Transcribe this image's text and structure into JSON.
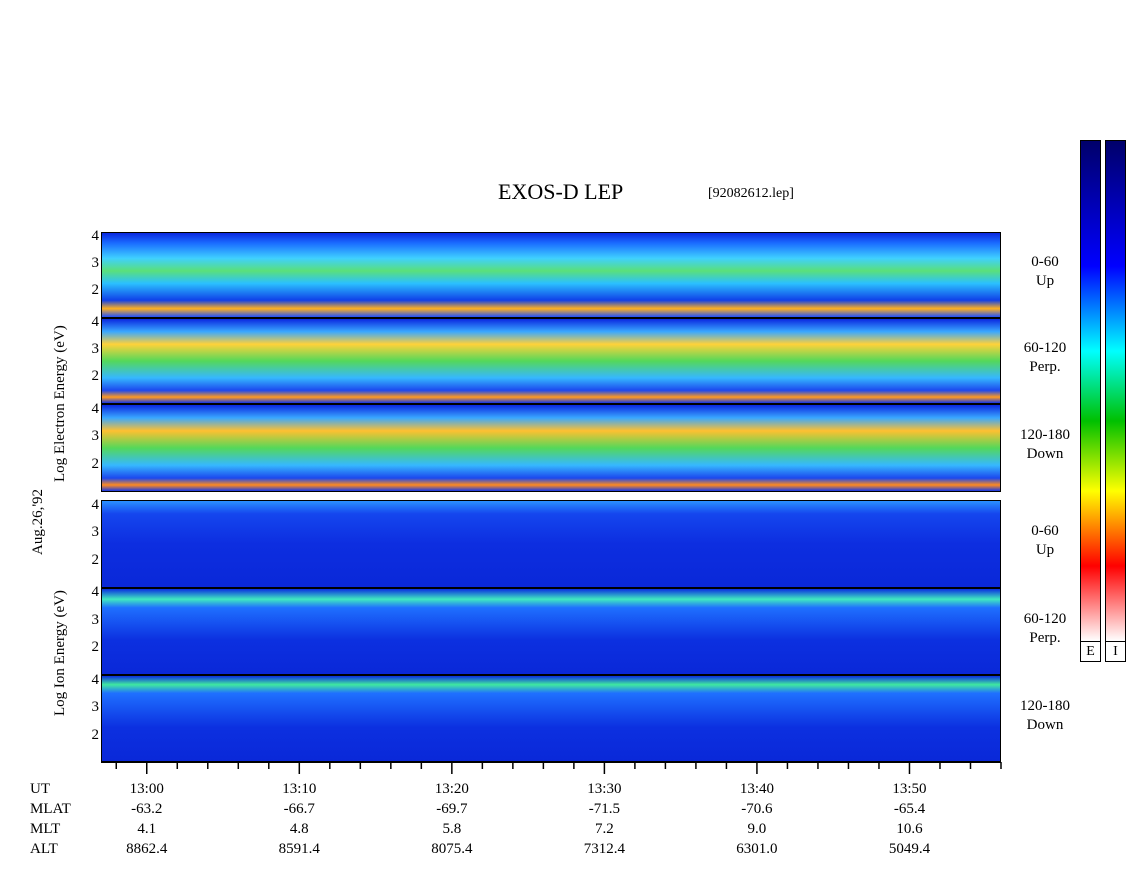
{
  "title": "EXOS-D LEP",
  "filename": "[92082612.lep]",
  "date_label": "Aug.26,'92",
  "electron_axis_label": "Log Electron Energy (eV)",
  "ion_axis_label": "Log Ion Energy (eV)",
  "colorbar": {
    "labels": [
      "E",
      "I"
    ]
  },
  "chart_data": {
    "type": "heatmap",
    "title": "EXOS-D LEP",
    "panels": [
      {
        "species": "Electron",
        "pitch_angle": "0-60",
        "direction": "Up",
        "y_ticks": [
          2,
          3,
          4
        ]
      },
      {
        "species": "Electron",
        "pitch_angle": "60-120",
        "direction": "Perp.",
        "y_ticks": [
          2,
          3,
          4
        ]
      },
      {
        "species": "Electron",
        "pitch_angle": "120-180",
        "direction": "Down",
        "y_ticks": [
          2,
          3,
          4
        ]
      },
      {
        "species": "Ion",
        "pitch_angle": "0-60",
        "direction": "Up",
        "y_ticks": [
          2,
          3,
          4
        ]
      },
      {
        "species": "Ion",
        "pitch_angle": "60-120",
        "direction": "Perp.",
        "y_ticks": [
          2,
          3,
          4
        ]
      },
      {
        "species": "Ion",
        "pitch_angle": "120-180",
        "direction": "Down",
        "y_ticks": [
          2,
          3,
          4
        ]
      }
    ],
    "ylim": [
      1,
      4.2
    ],
    "xlim_minutes": [
      12.57,
      13.56
    ],
    "x_rows": [
      {
        "label": "UT",
        "values": [
          "13:00",
          "13:10",
          "13:20",
          "13:30",
          "13:40",
          "13:50"
        ]
      },
      {
        "label": "MLAT",
        "values": [
          "-63.2",
          "-66.7",
          "-69.7",
          "-71.5",
          "-70.6",
          "-65.4"
        ]
      },
      {
        "label": "MLT",
        "values": [
          "4.1",
          "4.8",
          "5.8",
          "7.2",
          "9.0",
          "10.6"
        ]
      },
      {
        "label": "ALT",
        "values": [
          "8862.4",
          "8591.4",
          "8075.4",
          "7312.4",
          "6301.0",
          "5049.4"
        ]
      }
    ]
  }
}
